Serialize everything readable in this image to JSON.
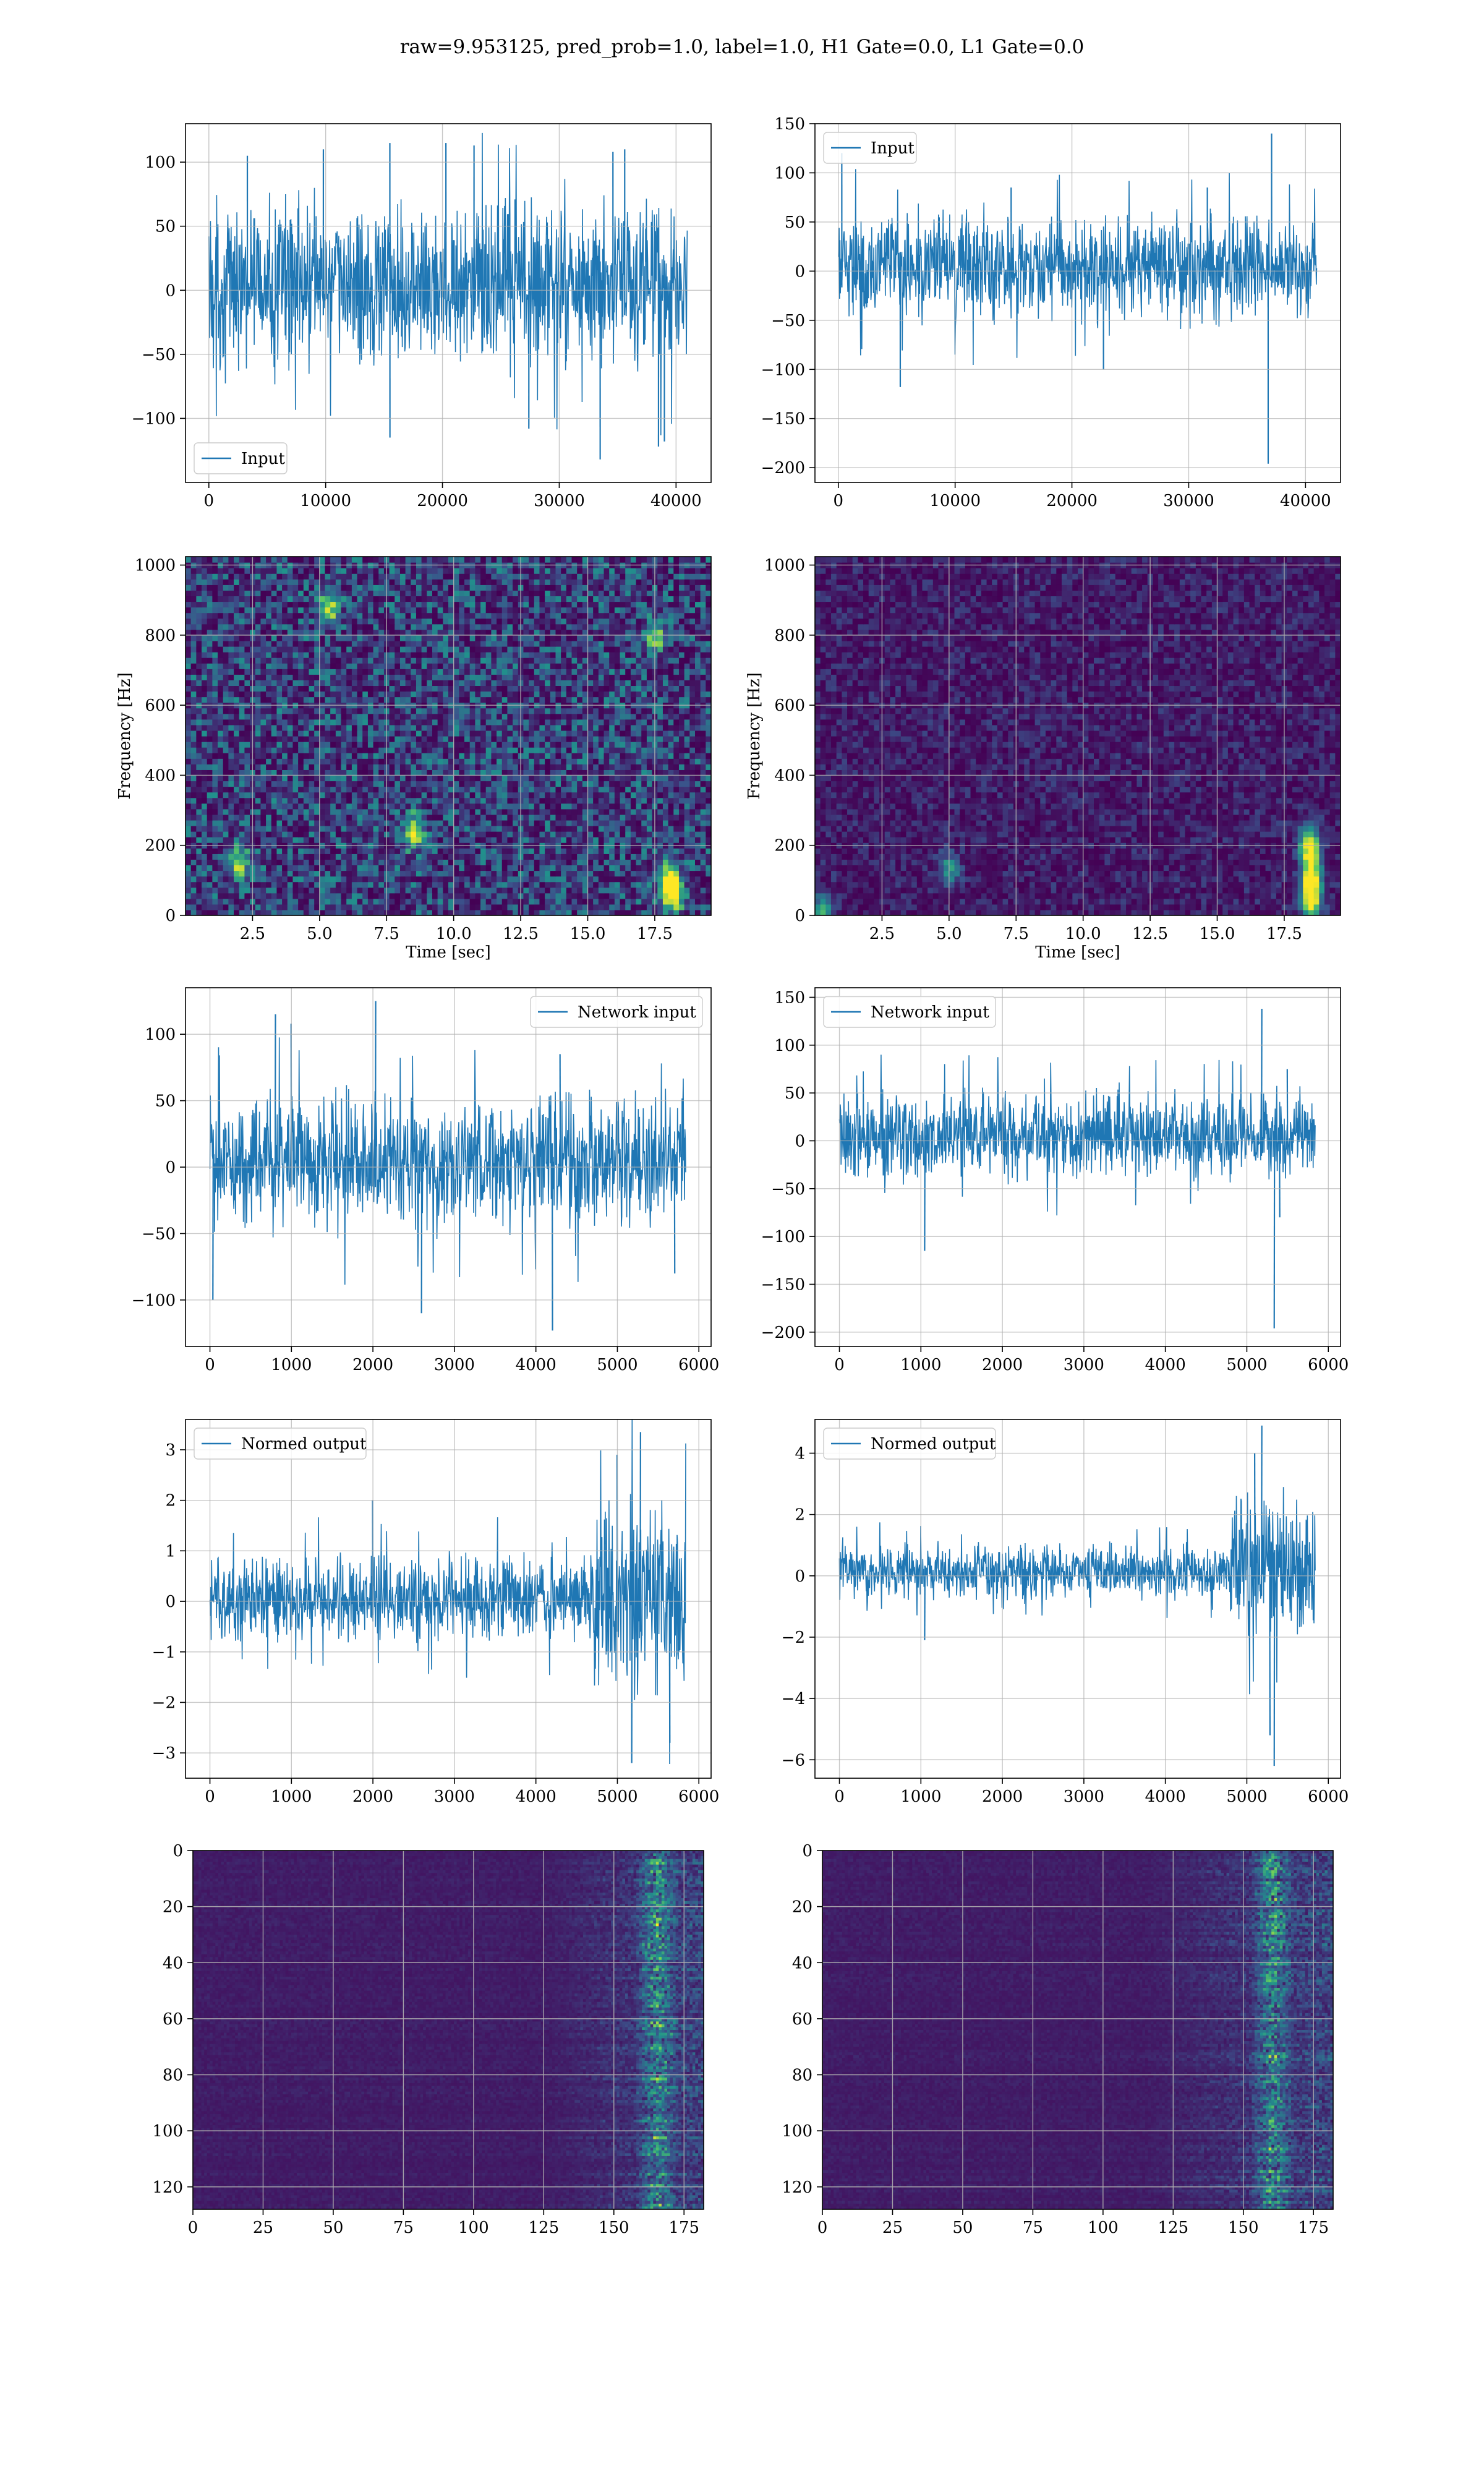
{
  "figure": {
    "suptitle": "raw=9.953125, pred_prob=1.0, label=1.0, H1 Gate=0.0, L1 Gate=0.0",
    "colors": {
      "line": "#1f77b4",
      "grid": "#b0b0b0",
      "viridis_dark": "#440154",
      "viridis_bright": "#fde725"
    }
  },
  "chart_data": [
    {
      "type": "line",
      "panel": "row1-left",
      "legend": [
        "Input"
      ],
      "legend_loc": "lower-left",
      "xlim": [
        -2000,
        43000
      ],
      "ylim": [
        -150,
        130
      ],
      "xticks": [
        0,
        10000,
        20000,
        30000,
        40000
      ],
      "xticklabels": [
        "0",
        "10000",
        "20000",
        "30000",
        "40000"
      ],
      "yticks": [
        -100,
        -50,
        0,
        50,
        100
      ],
      "yticklabels": [
        "−100",
        "−50",
        "0",
        "50",
        "100"
      ],
      "xlabel": "",
      "ylabel": "",
      "n_samples": 40960,
      "band": [
        -65,
        75
      ],
      "peak_max": 123,
      "peak_min": -132,
      "spikes": [
        [
          3300,
          105
        ],
        [
          9800,
          110
        ],
        [
          15500,
          115
        ],
        [
          15500,
          -115
        ],
        [
          20300,
          115
        ],
        [
          22700,
          113
        ],
        [
          27400,
          -108
        ],
        [
          33500,
          -132
        ],
        [
          34600,
          108
        ],
        [
          35600,
          110
        ],
        [
          38500,
          -122
        ],
        [
          39000,
          -118
        ]
      ]
    },
    {
      "type": "line",
      "panel": "row1-right",
      "legend": [
        "Input"
      ],
      "legend_loc": "upper-left",
      "xlim": [
        -2000,
        43000
      ],
      "ylim": [
        -215,
        150
      ],
      "xticks": [
        0,
        10000,
        20000,
        30000,
        40000
      ],
      "xticklabels": [
        "0",
        "10000",
        "20000",
        "30000",
        "40000"
      ],
      "yticks": [
        -200,
        -150,
        -100,
        -50,
        0,
        50,
        100,
        150
      ],
      "yticklabels": [
        "−200",
        "−150",
        "−100",
        "−50",
        "0",
        "50",
        "100",
        "150"
      ],
      "xlabel": "",
      "ylabel": "",
      "n_samples": 40960,
      "band": [
        -55,
        65
      ],
      "peak_max": 140,
      "peak_min": -196,
      "spikes": [
        [
          300,
          120
        ],
        [
          5300,
          -118
        ],
        [
          14800,
          85
        ],
        [
          22700,
          -100
        ],
        [
          31600,
          85
        ],
        [
          36800,
          -196
        ],
        [
          37100,
          140
        ]
      ]
    },
    {
      "type": "heatmap",
      "panel": "row2-left",
      "xlim": [
        0,
        19.6
      ],
      "ylim": [
        0,
        1024
      ],
      "xticks": [
        2.5,
        5.0,
        7.5,
        10.0,
        12.5,
        15.0,
        17.5
      ],
      "xticklabels": [
        "2.5",
        "5.0",
        "7.5",
        "10.0",
        "12.5",
        "15.0",
        "17.5"
      ],
      "yticks": [
        0,
        200,
        400,
        600,
        800,
        1000
      ],
      "yticklabels": [
        "0",
        "200",
        "400",
        "600",
        "800",
        "1000"
      ],
      "xlabel": "Time [sec]",
      "ylabel": "Frequency [Hz]",
      "colormap": "viridis",
      "base_level": 0.28,
      "hotspots": [
        [
          18.2,
          60,
          0.95
        ],
        [
          8.5,
          240,
          0.8
        ],
        [
          5.3,
          880,
          0.7
        ],
        [
          17.5,
          800,
          0.6
        ],
        [
          2.0,
          150,
          0.7
        ],
        [
          18.0,
          100,
          0.9
        ]
      ]
    },
    {
      "type": "heatmap",
      "panel": "row2-right",
      "xlim": [
        0,
        19.6
      ],
      "ylim": [
        0,
        1024
      ],
      "xticks": [
        2.5,
        5.0,
        7.5,
        10.0,
        12.5,
        15.0,
        17.5
      ],
      "xticklabels": [
        "2.5",
        "5.0",
        "7.5",
        "10.0",
        "12.5",
        "15.0",
        "17.5"
      ],
      "yticks": [
        0,
        200,
        400,
        600,
        800,
        1000
      ],
      "yticklabels": [
        "0",
        "200",
        "400",
        "600",
        "800",
        "1000"
      ],
      "xlabel": "Time [sec]",
      "ylabel": "Frequency [Hz]",
      "colormap": "viridis",
      "base_level": 0.12,
      "hotspots": [
        [
          18.5,
          40,
          1.0
        ],
        [
          18.5,
          100,
          0.95
        ],
        [
          18.5,
          170,
          0.8
        ],
        [
          18.4,
          220,
          0.6
        ],
        [
          5.0,
          130,
          0.45
        ],
        [
          0.3,
          10,
          0.6
        ]
      ]
    },
    {
      "type": "line",
      "panel": "row3-left",
      "legend": [
        "Network input"
      ],
      "legend_loc": "upper-right",
      "xlim": [
        -300,
        6150
      ],
      "ylim": [
        -135,
        135
      ],
      "xticks": [
        0,
        1000,
        2000,
        3000,
        4000,
        5000,
        6000
      ],
      "xticklabels": [
        "0",
        "1000",
        "2000",
        "3000",
        "4000",
        "5000",
        "6000"
      ],
      "yticks": [
        -100,
        -50,
        0,
        50,
        100
      ],
      "yticklabels": [
        "−100",
        "−50",
        "0",
        "50",
        "100"
      ],
      "xlabel": "",
      "ylabel": "",
      "n_samples": 5840,
      "band": [
        -50,
        60
      ],
      "peak_max": 125,
      "peak_min": -123,
      "spikes": [
        [
          40,
          -100
        ],
        [
          800,
          115
        ],
        [
          1000,
          108
        ],
        [
          2030,
          125
        ],
        [
          2600,
          -110
        ],
        [
          4200,
          -123
        ],
        [
          4300,
          85
        ],
        [
          5700,
          -80
        ]
      ]
    },
    {
      "type": "line",
      "panel": "row3-right",
      "legend": [
        "Network input"
      ],
      "legend_loc": "upper-left",
      "xlim": [
        -300,
        6150
      ],
      "ylim": [
        -215,
        160
      ],
      "xticks": [
        0,
        1000,
        2000,
        3000,
        4000,
        5000,
        6000
      ],
      "xticklabels": [
        "0",
        "1000",
        "2000",
        "3000",
        "4000",
        "5000",
        "6000"
      ],
      "yticks": [
        -200,
        -150,
        -100,
        -50,
        0,
        50,
        100,
        150
      ],
      "yticklabels": [
        "−200",
        "−150",
        "−100",
        "−50",
        "0",
        "50",
        "100",
        "150"
      ],
      "xlabel": "",
      "ylabel": "",
      "n_samples": 5840,
      "band": [
        -45,
        55
      ],
      "peak_max": 138,
      "peak_min": -196,
      "spikes": [
        [
          1050,
          -115
        ],
        [
          5180,
          138
        ],
        [
          5340,
          -196
        ],
        [
          5400,
          -80
        ],
        [
          5500,
          75
        ]
      ]
    },
    {
      "type": "line",
      "panel": "row4-left",
      "legend": [
        "Normed output"
      ],
      "legend_loc": "upper-left",
      "xlim": [
        -300,
        6150
      ],
      "ylim": [
        -3.5,
        3.6
      ],
      "xticks": [
        0,
        1000,
        2000,
        3000,
        4000,
        5000,
        6000
      ],
      "xticklabels": [
        "0",
        "1000",
        "2000",
        "3000",
        "4000",
        "5000",
        "6000"
      ],
      "yticks": [
        -3,
        -2,
        -1,
        0,
        1,
        2,
        3
      ],
      "yticklabels": [
        "−3",
        "−2",
        "−1",
        "0",
        "1",
        "2",
        "3"
      ],
      "xlabel": "",
      "ylabel": "",
      "n_samples": 5840,
      "band": [
        -0.9,
        1.0
      ],
      "burst_start": 4650,
      "burst_band": [
        -2.0,
        2.2
      ],
      "peak_max": 3.35,
      "peak_min": -3.2,
      "spikes": [
        [
          2000,
          2.0
        ],
        [
          5280,
          3.35
        ],
        [
          5180,
          -3.2
        ],
        [
          5640,
          -2.8
        ],
        [
          5000,
          2.9
        ]
      ]
    },
    {
      "type": "line",
      "panel": "row4-right",
      "legend": [
        "Normed output"
      ],
      "legend_loc": "upper-left",
      "xlim": [
        -300,
        6150
      ],
      "ylim": [
        -6.6,
        5.1
      ],
      "xticks": [
        0,
        1000,
        2000,
        3000,
        4000,
        5000,
        6000
      ],
      "xticklabels": [
        "0",
        "1000",
        "2000",
        "3000",
        "4000",
        "5000",
        "6000"
      ],
      "yticks": [
        -6,
        -4,
        -2,
        0,
        2,
        4
      ],
      "yticklabels": [
        "−6",
        "−4",
        "−2",
        "0",
        "2",
        "4"
      ],
      "xlabel": "",
      "ylabel": "",
      "n_samples": 5840,
      "band": [
        -0.8,
        1.1
      ],
      "burst_start": 4800,
      "burst_band": [
        -2.2,
        2.8
      ],
      "peak_max": 4.9,
      "peak_min": -6.2,
      "spikes": [
        [
          1050,
          -2.1
        ],
        [
          5180,
          4.9
        ],
        [
          5340,
          -6.2
        ],
        [
          5280,
          -5.2
        ],
        [
          5100,
          4.0
        ]
      ]
    },
    {
      "type": "heatmap",
      "panel": "row5-left",
      "xlim": [
        0,
        182
      ],
      "ylim": [
        128,
        0
      ],
      "xticks": [
        0,
        25,
        50,
        75,
        100,
        125,
        150,
        175
      ],
      "xticklabels": [
        "0",
        "25",
        "50",
        "75",
        "100",
        "125",
        "150",
        "175"
      ],
      "yticks": [
        0,
        20,
        40,
        60,
        80,
        100,
        120
      ],
      "yticklabels": [
        "0",
        "20",
        "40",
        "60",
        "80",
        "100",
        "120"
      ],
      "xlabel": "",
      "ylabel": "",
      "colormap": "viridis",
      "active_from": 125,
      "hot_column": 165
    },
    {
      "type": "heatmap",
      "panel": "row5-right",
      "xlim": [
        0,
        182
      ],
      "ylim": [
        128,
        0
      ],
      "xticks": [
        0,
        25,
        50,
        75,
        100,
        125,
        150,
        175
      ],
      "xticklabels": [
        "0",
        "25",
        "50",
        "75",
        "100",
        "125",
        "150",
        "175"
      ],
      "yticks": [
        0,
        20,
        40,
        60,
        80,
        100,
        120
      ],
      "yticklabels": [
        "0",
        "20",
        "40",
        "60",
        "80",
        "100",
        "120"
      ],
      "xlabel": "",
      "ylabel": "",
      "colormap": "viridis",
      "active_from": 115,
      "hot_column": 160
    }
  ]
}
